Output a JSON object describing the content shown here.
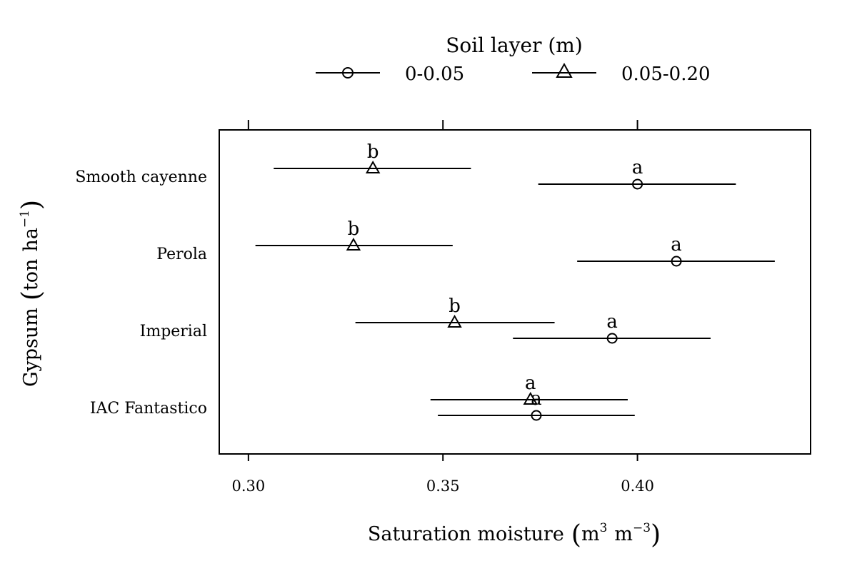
{
  "chart_data": {
    "type": "dot-interval",
    "legend": {
      "title": "Soil layer (m)",
      "position": "top",
      "entries": [
        {
          "label": "0-0.05",
          "marker": "circle"
        },
        {
          "label": "0.05-0.20",
          "marker": "triangle"
        }
      ]
    },
    "xlabel": "Saturation moisture",
    "xlabel_unit": {
      "base1": "m",
      "exp1": "3",
      "base2": "m",
      "exp2": "−3"
    },
    "ylabel": "Gypsum",
    "ylabel_unit": {
      "base1": "ton",
      "base2": "ha",
      "exp2": "−1"
    },
    "xlim": [
      0.2925,
      0.4445
    ],
    "xticks": [
      0.3,
      0.35,
      0.4
    ],
    "xtick_labels": [
      "0.30",
      "0.35",
      "0.40"
    ],
    "categories": [
      "Smooth cayenne",
      "Perola",
      "Imperial",
      "IAC Fantastico"
    ],
    "series": [
      {
        "name": "0-0.05",
        "marker": "circle",
        "points": [
          {
            "category": "Smooth cayenne",
            "estimate": 0.4,
            "lower": 0.3745,
            "upper": 0.4253,
            "letter": "a"
          },
          {
            "category": "Perola",
            "estimate": 0.41,
            "lower": 0.3845,
            "upper": 0.4353,
            "letter": "a"
          },
          {
            "category": "Imperial",
            "estimate": 0.3935,
            "lower": 0.368,
            "upper": 0.4188,
            "letter": "a"
          },
          {
            "category": "IAC Fantastico",
            "estimate": 0.374,
            "lower": 0.3487,
            "upper": 0.3993,
            "letter": "a"
          }
        ]
      },
      {
        "name": "0.05-0.20",
        "marker": "triangle",
        "points": [
          {
            "category": "Smooth cayenne",
            "estimate": 0.332,
            "lower": 0.3065,
            "upper": 0.3572,
            "letter": "b"
          },
          {
            "category": "Perola",
            "estimate": 0.327,
            "lower": 0.3018,
            "upper": 0.3525,
            "letter": "b"
          },
          {
            "category": "Imperial",
            "estimate": 0.353,
            "lower": 0.3275,
            "upper": 0.3787,
            "letter": "b"
          },
          {
            "category": "IAC Fantastico",
            "estimate": 0.3725,
            "lower": 0.3468,
            "upper": 0.3975,
            "letter": "a"
          }
        ]
      }
    ]
  }
}
